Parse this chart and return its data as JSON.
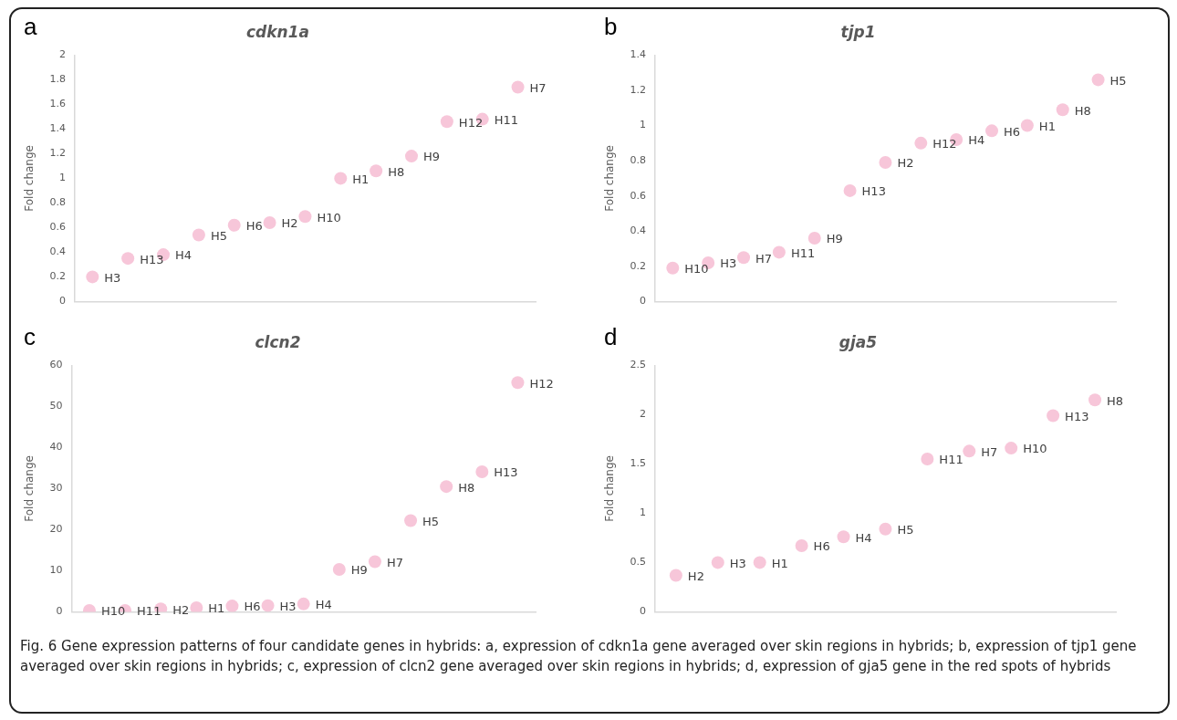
{
  "chart_data": [
    {
      "type": "scatter",
      "title": "cdkn1a",
      "ylabel": "Fold change",
      "categories": [
        null,
        null,
        null,
        null,
        null,
        null,
        null,
        null,
        null,
        null,
        null,
        null,
        null
      ],
      "series": [
        {
          "color": "#f7c6d9",
          "values": [
            0.2,
            0.35,
            0.38,
            0.54,
            0.62,
            0.64,
            0.69,
            1.0,
            1.06,
            1.18,
            1.46,
            1.48,
            1.74
          ],
          "value_labels": [
            "H3",
            "H13",
            "H4",
            "H5",
            "H6",
            "H2",
            "H10",
            "H1",
            "H8",
            "H9",
            "H12",
            "H11",
            "H7"
          ]
        }
      ],
      "ylim": [
        0,
        2
      ],
      "yticks": [
        0,
        0.2,
        0.4,
        0.6,
        0.8,
        1,
        1.2,
        1.4,
        1.6,
        1.8,
        2
      ],
      "tick_labels": "y",
      "marker": "circle",
      "grid": false,
      "legend": false,
      "annotations": [
        "a",
        "Fig. 6 Gene expression patterns of four candidate genes in hybrids: a, expression of cdkn1a gene averaged over skin regions in hybrids; b, expression of tjp1 gene averaged over skin regions in hybrids; c, expression of clcn2 gene averaged over skin regions in hybrids; d, expression of gja5 gene in the red spots of hybrids"
      ]
    },
    {
      "type": "scatter",
      "title": "tjp1",
      "ylabel": "Fold change",
      "categories": [
        null,
        null,
        null,
        null,
        null,
        null,
        null,
        null,
        null,
        null,
        null,
        null,
        null
      ],
      "series": [
        {
          "color": "#f7c6d9",
          "values": [
            0.19,
            0.22,
            0.25,
            0.28,
            0.36,
            0.63,
            0.79,
            0.9,
            0.92,
            0.97,
            1.0,
            1.09,
            1.26
          ],
          "value_labels": [
            "H10",
            "H3",
            "H7",
            "H11",
            "H9",
            "H13",
            "H2",
            "H12",
            "H4",
            "H6",
            "H1",
            "H8",
            "H5"
          ]
        }
      ],
      "ylim": [
        0,
        1.4
      ],
      "yticks": [
        0,
        0.2,
        0.4,
        0.6,
        0.8,
        1,
        1.2,
        1.4
      ],
      "tick_labels": "y",
      "marker": "circle",
      "grid": false,
      "legend": false,
      "annotations": [
        "b"
      ]
    },
    {
      "type": "scatter",
      "title": "clcn2",
      "ylabel": "Fold change",
      "categories": [
        null,
        null,
        null,
        null,
        null,
        null,
        null,
        null,
        null,
        null,
        null,
        null,
        null
      ],
      "series": [
        {
          "color": "#f7c6d9",
          "values": [
            0.3,
            0.3,
            0.7,
            1.0,
            1.4,
            1.5,
            1.9,
            10.3,
            12.2,
            22.2,
            30.5,
            34.1,
            55.8
          ],
          "value_labels": [
            "H10",
            "H11",
            "H2",
            "H1",
            "H6",
            "H3",
            "H4",
            "H9",
            "H7",
            "H5",
            "H8",
            "H13",
            "H12"
          ]
        }
      ],
      "ylim": [
        0,
        60
      ],
      "yticks": [
        0,
        10,
        20,
        30,
        40,
        50,
        60
      ],
      "tick_labels": "y",
      "marker": "circle",
      "grid": false,
      "legend": false,
      "annotations": [
        "c"
      ]
    },
    {
      "type": "scatter",
      "title": "gja5",
      "ylabel": "Fold change",
      "categories": [
        null,
        null,
        null,
        null,
        null,
        null,
        null,
        null,
        null,
        null,
        null
      ],
      "series": [
        {
          "color": "#f7c6d9",
          "values": [
            0.37,
            0.5,
            0.5,
            0.67,
            0.76,
            0.84,
            1.55,
            1.63,
            1.66,
            1.99,
            2.15
          ],
          "value_labels": [
            "H2",
            "H3",
            "H1",
            "H6",
            "H4",
            "H5",
            "H11",
            "H7",
            "H10",
            "H13",
            "H8"
          ]
        }
      ],
      "ylim": [
        0,
        2.5
      ],
      "yticks": [
        0,
        0.5,
        1,
        1.5,
        2,
        2.5
      ],
      "tick_labels": "y",
      "marker": "circle",
      "grid": false,
      "legend": false,
      "annotations": [
        "d"
      ]
    }
  ]
}
